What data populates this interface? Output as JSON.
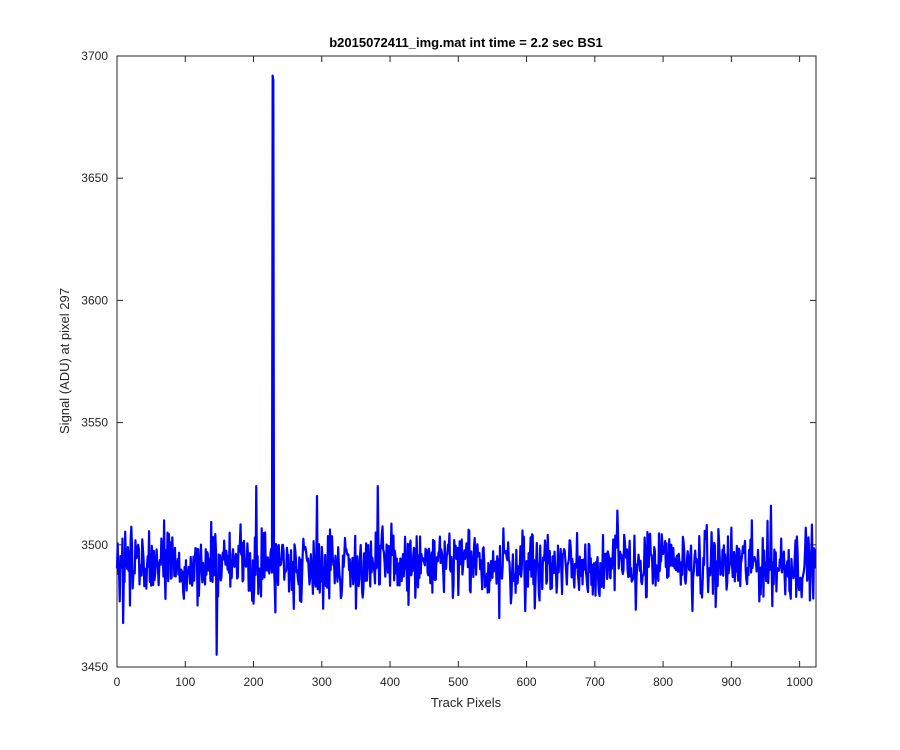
{
  "chart_data": {
    "type": "line",
    "title": "b2015072411_img.mat int time = 2.2 sec   BS1",
    "xlabel": "Track Pixels",
    "ylabel": "Signal (ADU) at pixel 297",
    "xlim": [
      0,
      1024
    ],
    "ylim": [
      3450,
      3700
    ],
    "xticks": [
      0,
      100,
      200,
      300,
      400,
      500,
      600,
      700,
      800,
      900,
      1000
    ],
    "yticks": [
      3450,
      3500,
      3550,
      3600,
      3650,
      3700
    ],
    "grid": false,
    "series_color": "#0000ff",
    "baseline_mean": 3492,
    "baseline_range": [
      3470,
      3510
    ],
    "num_points": 1024,
    "notable_points": [
      {
        "x": 9,
        "y": 3468
      },
      {
        "x": 146,
        "y": 3455
      },
      {
        "x": 204,
        "y": 3524
      },
      {
        "x": 228,
        "y": 3692
      },
      {
        "x": 229,
        "y": 3690
      },
      {
        "x": 293,
        "y": 3520
      },
      {
        "x": 382,
        "y": 3524
      },
      {
        "x": 560,
        "y": 3470
      },
      {
        "x": 612,
        "y": 3474
      },
      {
        "x": 733,
        "y": 3514
      },
      {
        "x": 958,
        "y": 3516
      },
      {
        "x": 1020,
        "y": 3478
      }
    ]
  }
}
